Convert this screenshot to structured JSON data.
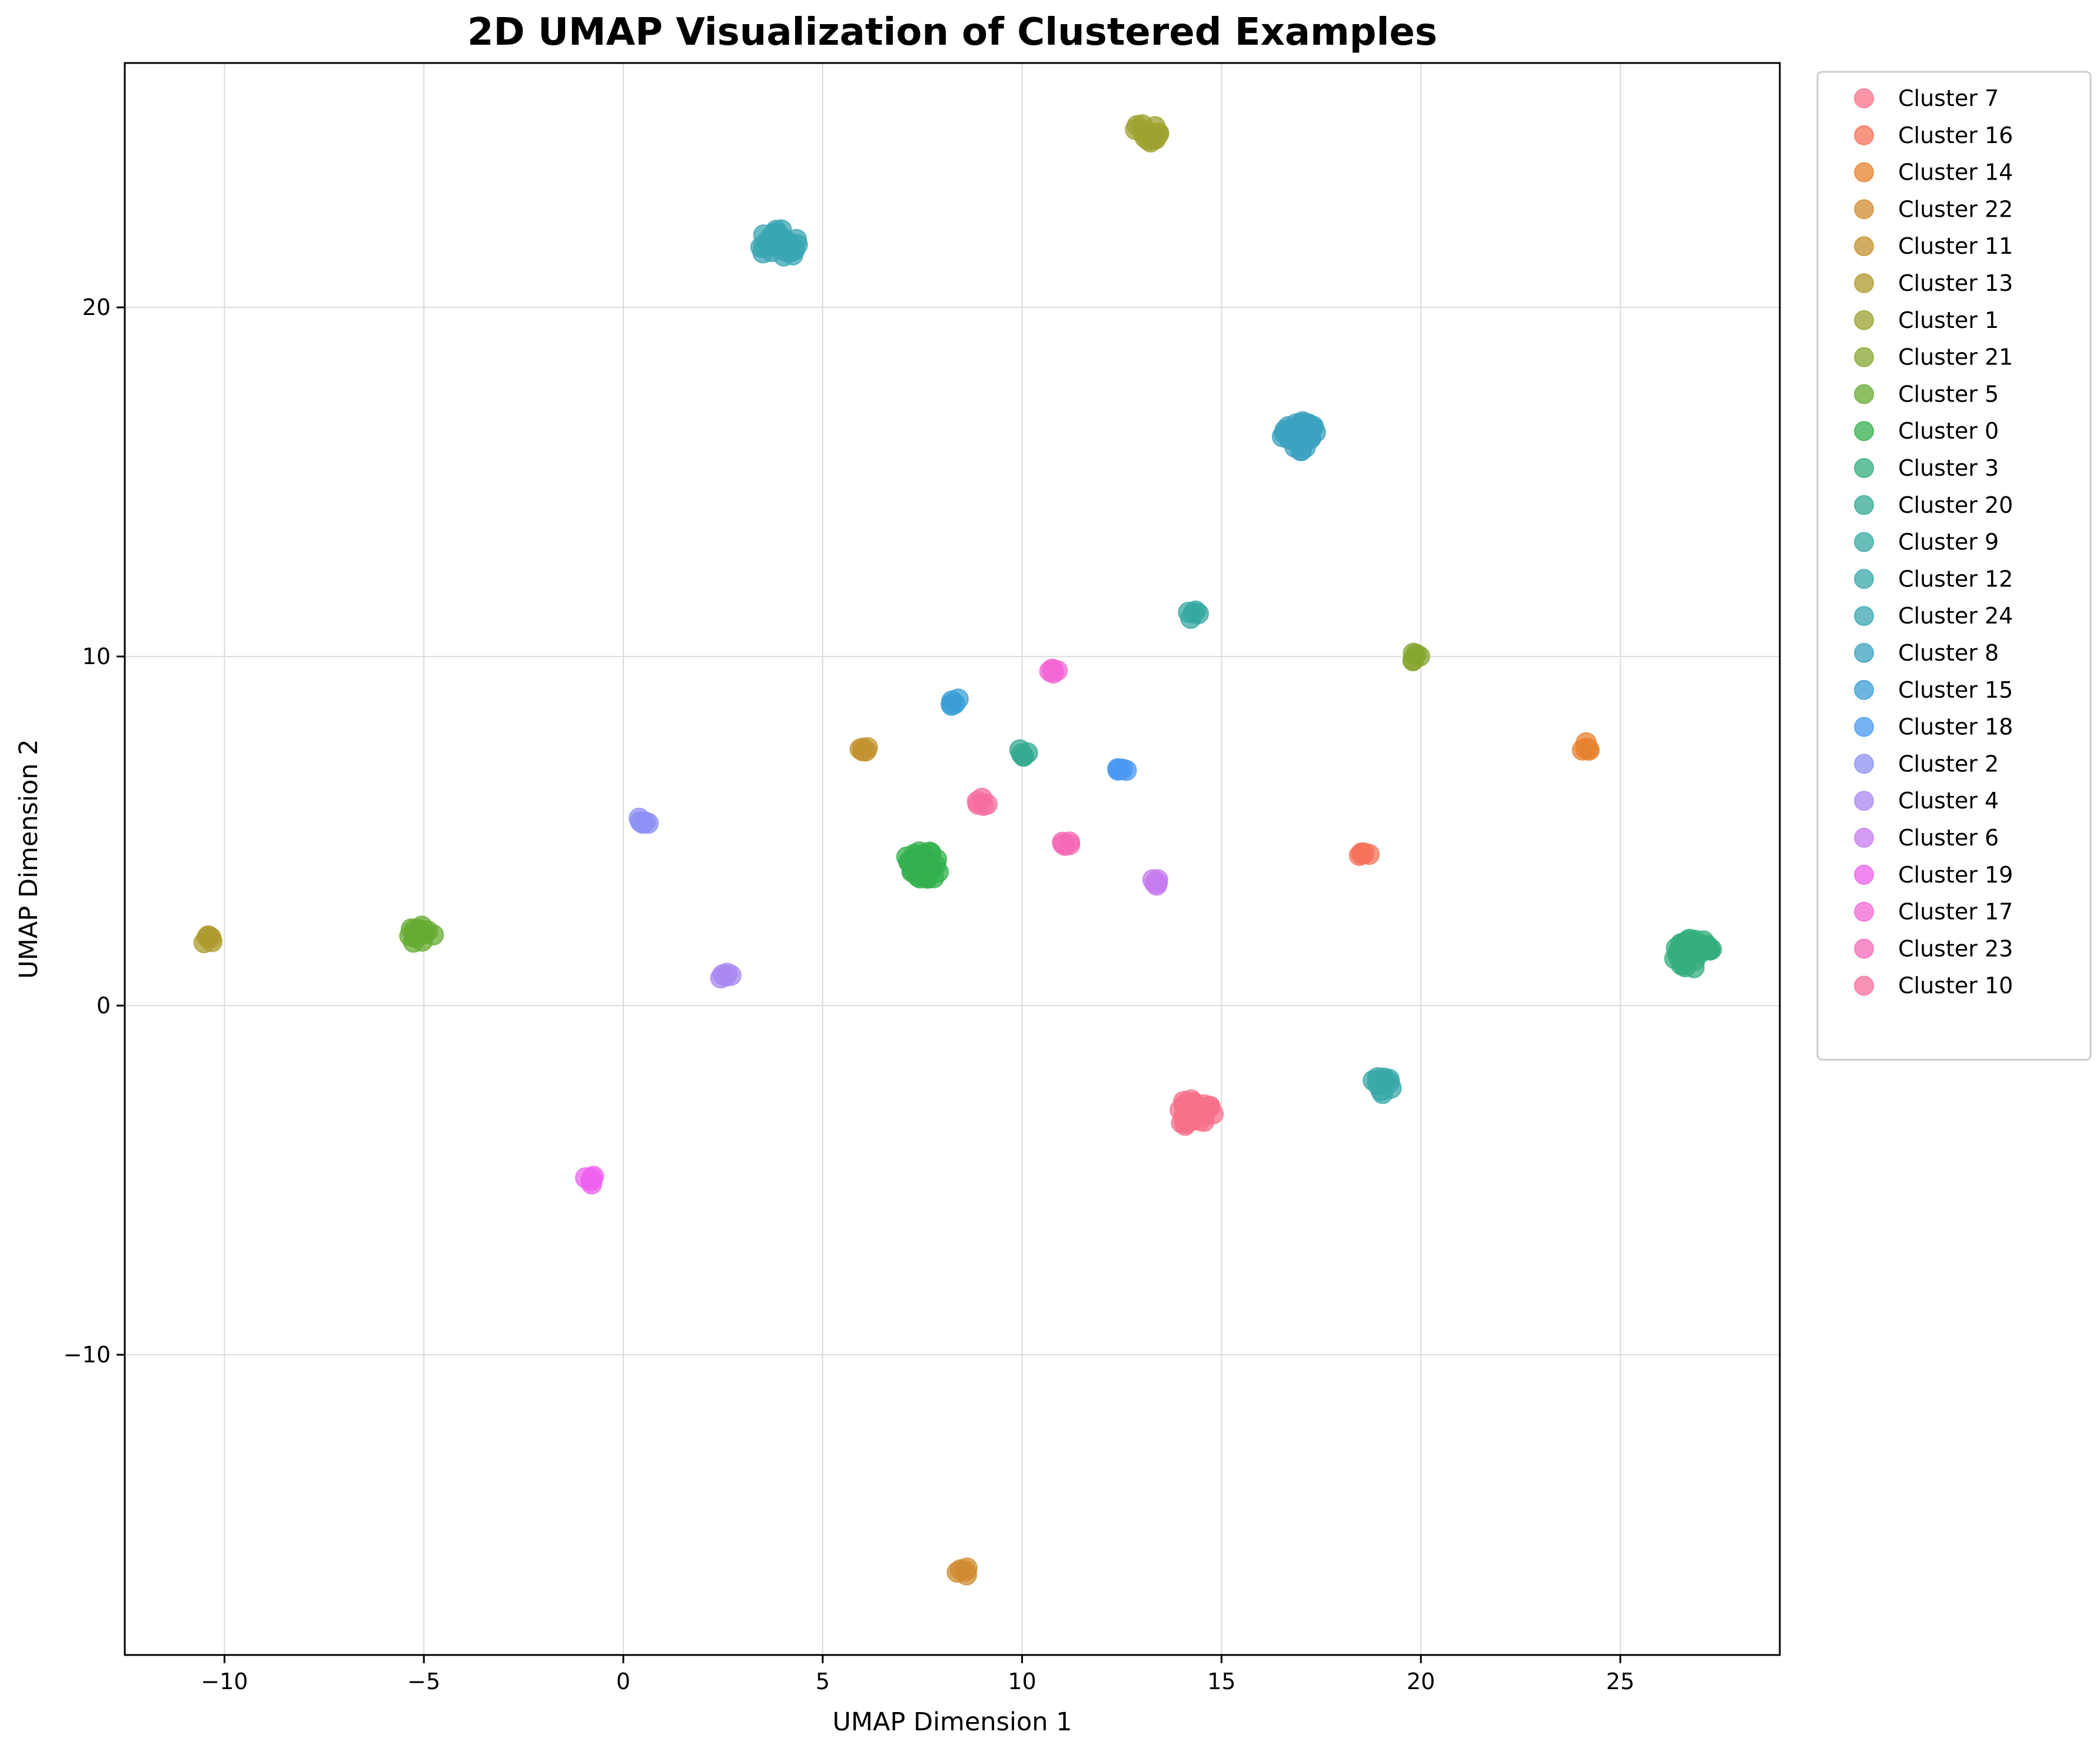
{
  "chart_data": {
    "type": "scatter",
    "title": "2D UMAP Visualization of Clustered Examples",
    "xlabel": "UMAP Dimension 1",
    "ylabel": "UMAP Dimension 2",
    "xlim": [
      -12.5,
      29
    ],
    "ylim": [
      -18.6,
      27
    ],
    "xticks": [
      -10,
      -5,
      0,
      5,
      10,
      15,
      20,
      25
    ],
    "yticks": [
      -10,
      0,
      10,
      20
    ],
    "xtick_labels": [
      "−10",
      "−5",
      "0",
      "5",
      "10",
      "15",
      "20",
      "25"
    ],
    "ytick_labels": [
      "−10",
      "0",
      "10",
      "20"
    ],
    "grid": true,
    "legend_position": "outside-right",
    "series": [
      {
        "name": "Cluster 7",
        "color": "#f77189",
        "size": "large",
        "x": 14.3,
        "y": -3.1
      },
      {
        "name": "Cluster 16",
        "color": "#f4735a",
        "size": "small",
        "x": 18.6,
        "y": 4.3
      },
      {
        "name": "Cluster 14",
        "color": "#e7812f",
        "size": "small",
        "x": 24.1,
        "y": 7.4
      },
      {
        "name": "Cluster 22",
        "color": "#d08b32",
        "size": "small",
        "x": 8.5,
        "y": -16.2
      },
      {
        "name": "Cluster 11",
        "color": "#c1932f",
        "size": "small",
        "x": 6.0,
        "y": 7.3
      },
      {
        "name": "Cluster 13",
        "color": "#ad9a2e",
        "size": "small",
        "x": -10.4,
        "y": 1.9
      },
      {
        "name": "Cluster 1",
        "color": "#9ea12f",
        "size": "medium",
        "x": 13.1,
        "y": 25.0
      },
      {
        "name": "Cluster 21",
        "color": "#86a630",
        "size": "small",
        "x": 19.8,
        "y": 10.0
      },
      {
        "name": "Cluster 5",
        "color": "#65ab32",
        "size": "medium",
        "x": -5.1,
        "y": 2.0
      },
      {
        "name": "Cluster 0",
        "color": "#33b04d",
        "size": "large",
        "x": 7.5,
        "y": 4.0
      },
      {
        "name": "Cluster 3",
        "color": "#34ad7c",
        "size": "large",
        "x": 26.8,
        "y": 1.5
      },
      {
        "name": "Cluster 20",
        "color": "#36aa92",
        "size": "small",
        "x": 10.0,
        "y": 7.2
      },
      {
        "name": "Cluster 9",
        "color": "#37a8a2",
        "size": "small",
        "x": 14.3,
        "y": 11.2
      },
      {
        "name": "Cluster 12",
        "color": "#39a8a8",
        "size": "medium",
        "x": 19.0,
        "y": -2.3
      },
      {
        "name": "Cluster 24",
        "color": "#3aa5b3",
        "size": "large",
        "x": 3.9,
        "y": 21.8
      },
      {
        "name": "Cluster 8",
        "color": "#3ca2c0",
        "size": "large",
        "x": 17.0,
        "y": 16.3
      },
      {
        "name": "Cluster 15",
        "color": "#3b9fd6",
        "size": "small",
        "x": 8.3,
        "y": 8.7
      },
      {
        "name": "Cluster 18",
        "color": "#4a98f1",
        "size": "small",
        "x": 12.5,
        "y": 6.8
      },
      {
        "name": "Cluster 2",
        "color": "#8e90f4",
        "size": "small",
        "x": 0.5,
        "y": 5.3
      },
      {
        "name": "Cluster 4",
        "color": "#a988f2",
        "size": "small",
        "x": 2.6,
        "y": 0.8
      },
      {
        "name": "Cluster 6",
        "color": "#c67bee",
        "size": "small",
        "x": 13.3,
        "y": 3.5
      },
      {
        "name": "Cluster 19",
        "color": "#ed62ed",
        "size": "small",
        "x": -0.8,
        "y": -5.0
      },
      {
        "name": "Cluster 17",
        "color": "#f367d4",
        "size": "small",
        "x": 10.8,
        "y": 9.5
      },
      {
        "name": "Cluster 23",
        "color": "#f56ab7",
        "size": "small",
        "x": 11.1,
        "y": 4.6
      },
      {
        "name": "Cluster 10",
        "color": "#f66e9f",
        "size": "small",
        "x": 9.0,
        "y": 5.8
      }
    ]
  }
}
